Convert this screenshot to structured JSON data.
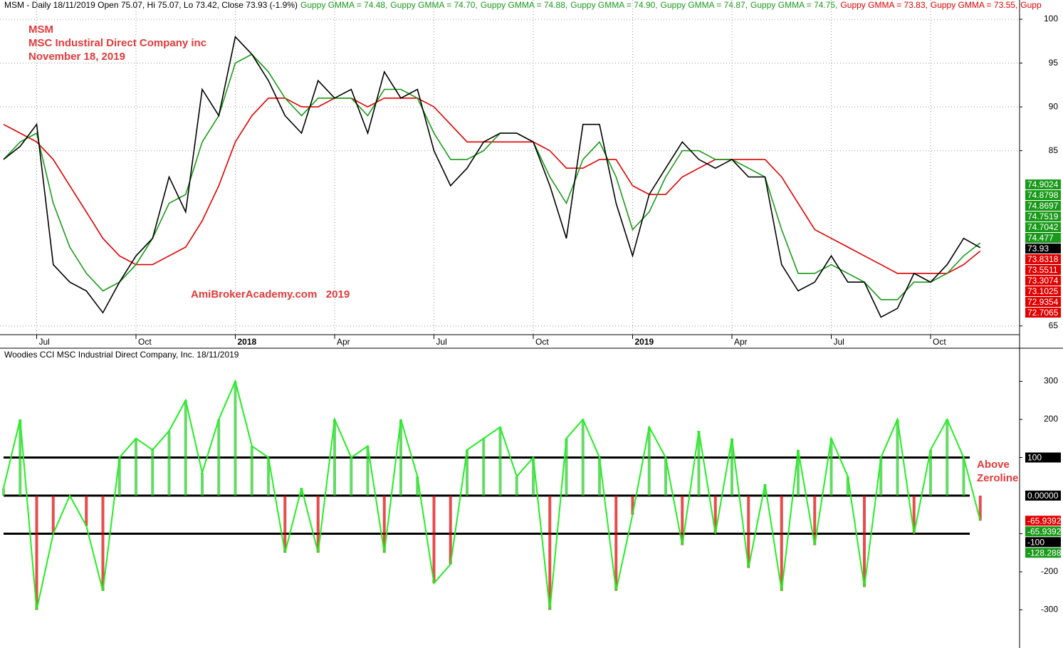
{
  "chart_data": [
    {
      "type": "line",
      "header": [
        {
          "text": "MSM - Daily 18/11/2019 Open 75.07, Hi 75.07, Lo 73.42, Close 73.93 (-1.9%)",
          "color": "#000000"
        },
        {
          "text": "Guppy GMMA = 74.48,",
          "color": "#1a9a1a"
        },
        {
          "text": "Guppy GMMA = 74.70,",
          "color": "#1a9a1a"
        },
        {
          "text": "Guppy GMMA = 74.88,",
          "color": "#1a9a1a"
        },
        {
          "text": "Guppy GMMA = 74.90,",
          "color": "#1a9a1a"
        },
        {
          "text": "Guppy GMMA = 74.87,",
          "color": "#1a9a1a"
        },
        {
          "text": "Guppy GMMA = 74.75,",
          "color": "#1a9a1a"
        },
        {
          "text": "Guppy GMMA = 73.83,",
          "color": "#e00000"
        },
        {
          "text": "Guppy GMMA = 73.55,",
          "color": "#e00000"
        },
        {
          "text": "Gupp",
          "color": "#e00000"
        }
      ],
      "annotations": [
        "MSM",
        "MSC Industiral Direct Company inc",
        "November 18, 2019"
      ],
      "watermark": "AmiBrokerAcademy.com   2019",
      "categories": [
        null,
        null,
        "Jul",
        null,
        null,
        null,
        null,
        null,
        "Oct",
        null,
        null,
        null,
        null,
        null,
        "2018",
        null,
        null,
        null,
        null,
        null,
        "Apr",
        null,
        null,
        null,
        null,
        null,
        "Jul",
        null,
        null,
        null,
        null,
        null,
        "Oct",
        null,
        null,
        null,
        null,
        null,
        "2019",
        null,
        null,
        null,
        null,
        null,
        "Apr",
        null,
        null,
        null,
        null,
        null,
        "Jul",
        null,
        null,
        null,
        null,
        null,
        "Oct",
        null,
        null,
        null
      ],
      "series": [
        {
          "color": "#000000",
          "values": [
            84,
            85.5,
            88,
            72,
            70,
            69,
            66.5,
            70,
            73,
            75,
            82,
            78,
            92,
            89,
            98,
            96,
            93,
            89,
            87,
            93,
            91,
            92,
            87,
            94,
            91,
            92,
            85,
            81,
            83,
            86,
            87,
            87,
            86,
            81,
            75,
            88,
            88,
            79,
            73,
            80,
            83,
            86,
            84,
            83,
            84,
            82,
            82,
            72,
            69,
            70,
            73,
            70,
            70,
            66,
            67,
            71,
            70,
            72,
            75,
            73.93
          ]
        },
        {
          "color": "#1a9a1a",
          "values": [
            84,
            86,
            87,
            79,
            74,
            71,
            69,
            70,
            72,
            75,
            79,
            80,
            86,
            89,
            95,
            96,
            94,
            91,
            89,
            91,
            91,
            91,
            89,
            92,
            92,
            91,
            87,
            84,
            84,
            85,
            87,
            87,
            86,
            82,
            79,
            84,
            86,
            82,
            76,
            78,
            82,
            85,
            85,
            84,
            84,
            83,
            82,
            76,
            71,
            71,
            72,
            71,
            70,
            68,
            68,
            70,
            70,
            71,
            73,
            74.48
          ]
        },
        {
          "color": "#e00000",
          "values": [
            88,
            87,
            86,
            84,
            81,
            78,
            75,
            73,
            72,
            72,
            73,
            74,
            77,
            81,
            86,
            89,
            91,
            91,
            90,
            90,
            91,
            91,
            90,
            91,
            91,
            91,
            90,
            88,
            86,
            86,
            86,
            86,
            86,
            85,
            83,
            83,
            84,
            84,
            81,
            80,
            80,
            82,
            83,
            84,
            84,
            84,
            84,
            82,
            79,
            76,
            75,
            74,
            73,
            72,
            71,
            71,
            71,
            71,
            72,
            73.55
          ]
        }
      ],
      "ylim": [
        64,
        102.2
      ],
      "yticks": [
        65,
        85,
        90,
        95,
        100
      ],
      "grid": true,
      "tags": [
        {
          "value": 74.9024,
          "color": "#1a9a1a"
        },
        {
          "value": 74.8798,
          "color": "#1a9a1a"
        },
        {
          "value": 74.8697,
          "color": "#1a9a1a"
        },
        {
          "value": 74.7519,
          "color": "#1a9a1a"
        },
        {
          "value": 74.7042,
          "color": "#1a9a1a"
        },
        {
          "value": 74.477,
          "color": "#1a9a1a"
        },
        {
          "value": 73.93,
          "color": "#000000"
        },
        {
          "value": 73.8318,
          "color": "#e00000"
        },
        {
          "value": 73.5511,
          "color": "#e00000"
        },
        {
          "value": 73.3074,
          "color": "#e00000"
        },
        {
          "value": 73.1025,
          "color": "#e00000"
        },
        {
          "value": 72.9354,
          "color": "#e00000"
        },
        {
          "value": 72.7065,
          "color": "#e00000"
        }
      ]
    },
    {
      "type": "line",
      "title": "Woodies CCI  MSC Industrial Direct Company, Inc. 18/11/2019",
      "annotations": [
        "Above",
        "Zeroline"
      ],
      "series": [
        {
          "color": "#22ee22",
          "values": [
            20,
            200,
            -300,
            -100,
            0,
            -80,
            -250,
            100,
            150,
            120,
            170,
            250,
            60,
            200,
            300,
            130,
            100,
            -150,
            20,
            -150,
            200,
            100,
            130,
            -150,
            200,
            50,
            -230,
            -180,
            120,
            150,
            180,
            50,
            100,
            -300,
            150,
            200,
            100,
            -250,
            -50,
            180,
            100,
            -130,
            170,
            -100,
            150,
            -190,
            30,
            -250,
            120,
            -130,
            150,
            50,
            -240,
            100,
            200,
            -100,
            120,
            200,
            100,
            -65.9392
          ]
        }
      ],
      "bars": {
        "up": "#22cc22",
        "down": "#dd0000"
      },
      "levels": [
        100,
        0,
        -100
      ],
      "ylim": [
        -400,
        385
      ],
      "yticks": [
        300,
        200,
        100,
        -100,
        -200,
        -300
      ],
      "tags": [
        {
          "value": 100,
          "color": "#000000"
        },
        {
          "value": {
            "value": 0,
            "label": "0.00000"
          },
          "color": "#000000"
        },
        {
          "value": -65.9392,
          "color": "#e00000"
        },
        {
          "value": -65.9392,
          "color": "#1a9a1a"
        },
        {
          "value": -100,
          "color": "#000000"
        },
        {
          "value": -128.288,
          "color": "#1a9a1a"
        }
      ]
    }
  ]
}
